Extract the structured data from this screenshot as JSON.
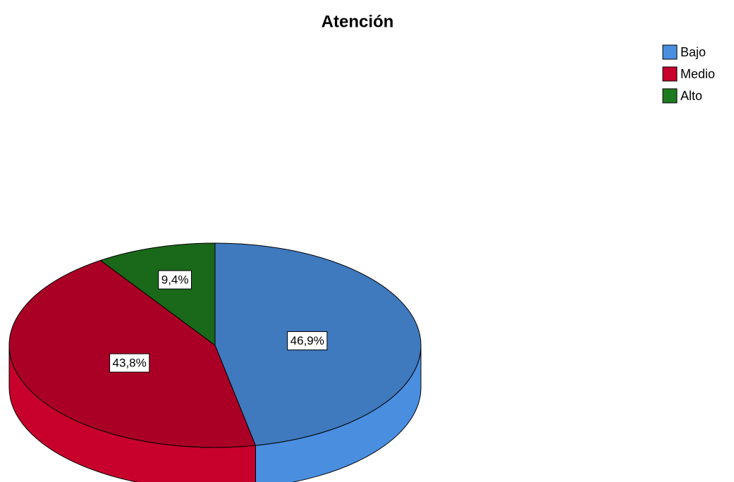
{
  "chart_data": {
    "type": "pie",
    "title": "Atención",
    "categories": [
      "Bajo",
      "Medio",
      "Alto"
    ],
    "values": [
      46.9,
      43.8,
      9.4
    ],
    "value_labels": [
      "46,9%",
      "43,8%",
      "9,4%"
    ],
    "colors": [
      "#4a8ee0",
      "#c8002c",
      "#1e7a1e"
    ],
    "legend": "top-right"
  }
}
